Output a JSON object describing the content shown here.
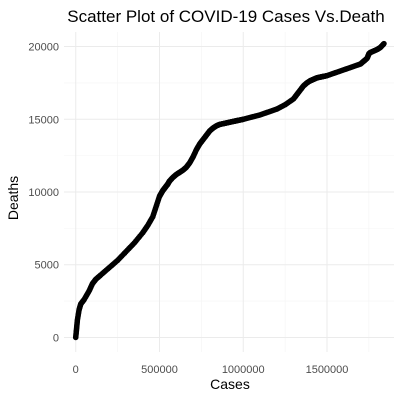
{
  "chart_data": {
    "type": "scatter",
    "title": "Scatter Plot of COVID-19 Cases Vs.Death",
    "xlabel": "Cases",
    "ylabel": "Deaths",
    "xlim": [
      -70000,
      1900000
    ],
    "ylim": [
      -1000,
      21000
    ],
    "x_ticks": [
      0,
      500000,
      1000000,
      1500000
    ],
    "x_tick_labels": [
      "0",
      "500000",
      "1000000",
      "1500000"
    ],
    "y_ticks": [
      0,
      5000,
      10000,
      15000,
      20000
    ],
    "y_tick_labels": [
      "0",
      "5000",
      "10000",
      "15000",
      "20000"
    ],
    "grid": true,
    "point_color": "#000000",
    "series": [
      {
        "x": [
          0,
          5000,
          10000,
          20000,
          30000,
          50000,
          80000,
          100000,
          120000,
          150000,
          200000,
          250000,
          300000,
          350000,
          400000,
          430000,
          460000,
          480000,
          500000,
          510000,
          520000,
          530000,
          540000,
          550000,
          560000,
          580000,
          600000,
          620000,
          640000,
          660000,
          680000,
          700000,
          720000,
          740000,
          760000,
          780000,
          800000,
          820000,
          840000,
          860000,
          880000,
          900000,
          920000,
          940000,
          960000,
          980000,
          1000000,
          1050000,
          1100000,
          1150000,
          1200000,
          1250000,
          1300000,
          1320000,
          1340000,
          1360000,
          1380000,
          1400000,
          1410000,
          1420000,
          1430000,
          1440000,
          1460000,
          1480000,
          1500000,
          1550000,
          1600000,
          1650000,
          1700000,
          1720000,
          1740000,
          1750000,
          1760000,
          1780000,
          1800000,
          1820000,
          1840000
        ],
        "y": [
          0,
          600,
          1200,
          1900,
          2300,
          2600,
          3200,
          3700,
          4000,
          4300,
          4800,
          5300,
          5900,
          6500,
          7200,
          7700,
          8300,
          9000,
          9700,
          9900,
          10100,
          10250,
          10400,
          10550,
          10750,
          11000,
          11200,
          11350,
          11500,
          11700,
          12000,
          12400,
          12900,
          13300,
          13600,
          13900,
          14200,
          14400,
          14550,
          14650,
          14700,
          14750,
          14800,
          14850,
          14900,
          14950,
          15000,
          15150,
          15300,
          15500,
          15700,
          16000,
          16400,
          16700,
          17000,
          17300,
          17500,
          17650,
          17700,
          17750,
          17800,
          17850,
          17900,
          17950,
          18000,
          18200,
          18400,
          18600,
          18800,
          19000,
          19200,
          19500,
          19600,
          19700,
          19800,
          19950,
          20200
        ]
      }
    ]
  }
}
